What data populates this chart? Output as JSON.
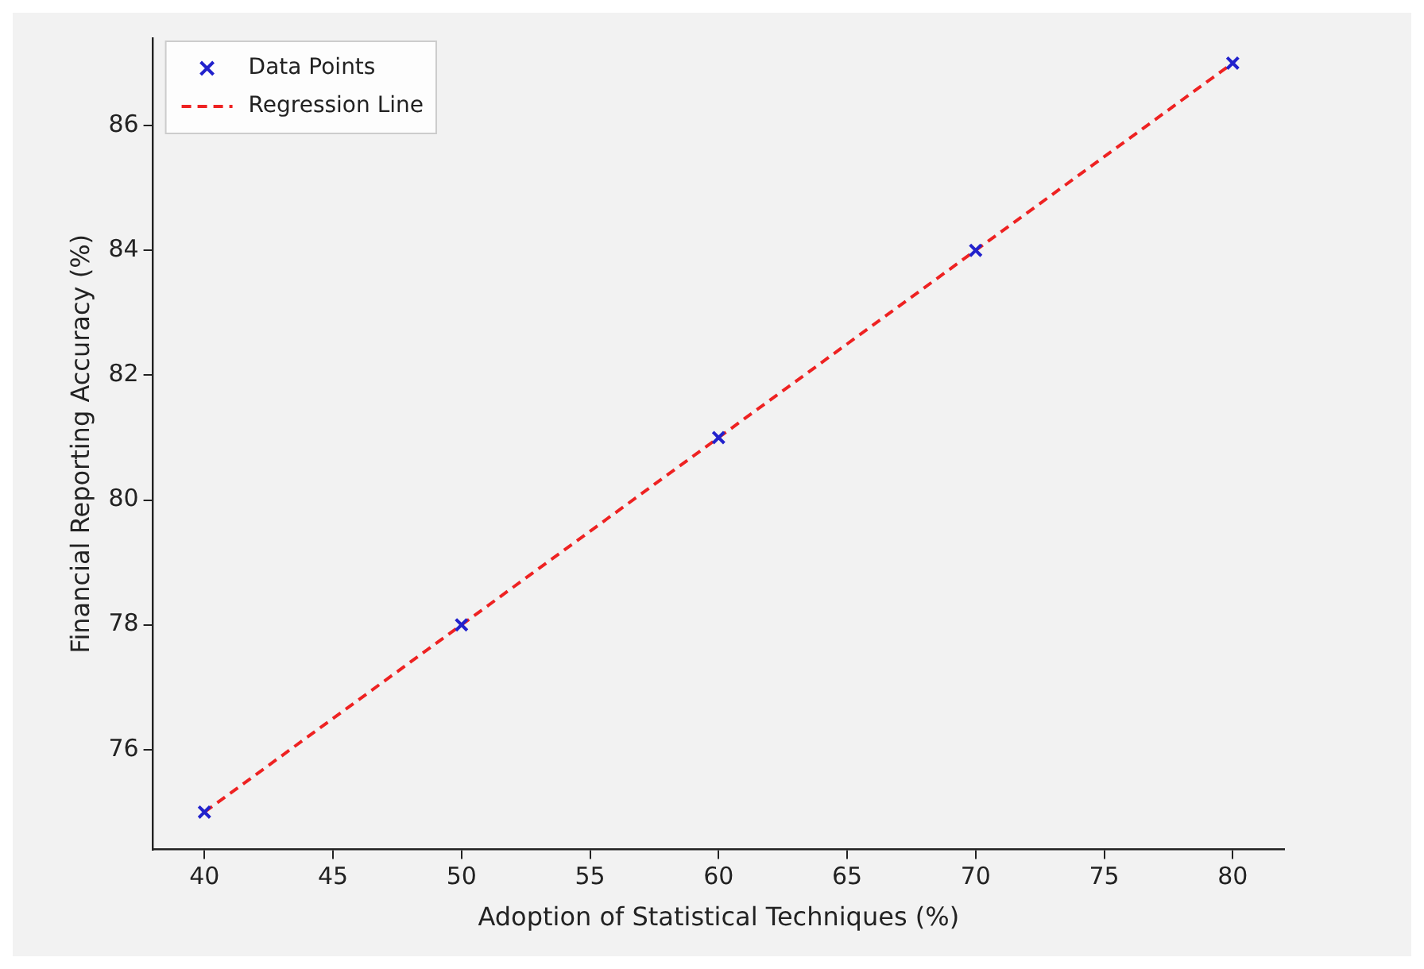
{
  "chart_data": {
    "type": "scatter",
    "xlabel": "Adoption of Statistical Techniques (%)",
    "ylabel": "Financial Reporting Accuracy (%)",
    "xlim": [
      38,
      82
    ],
    "xticks": [
      40,
      45,
      50,
      55,
      60,
      65,
      70,
      75,
      80
    ],
    "ylim": [
      74.4,
      87.4
    ],
    "yticks": [
      76,
      78,
      80,
      82,
      84,
      86
    ],
    "grid": false,
    "legend": "top left",
    "series": [
      {
        "name": "Data Points",
        "type": "scatter",
        "marker": "cross",
        "color": "#2222cc",
        "x": [
          40,
          50,
          60,
          70,
          80
        ],
        "values": [
          75,
          78,
          81,
          84,
          87
        ]
      },
      {
        "name": "Regression Line",
        "type": "line",
        "line_style": "dashed",
        "color": "#ee2222",
        "x": [
          40,
          50,
          60,
          70,
          80
        ],
        "values": [
          75,
          78,
          81,
          84,
          87
        ]
      }
    ]
  }
}
